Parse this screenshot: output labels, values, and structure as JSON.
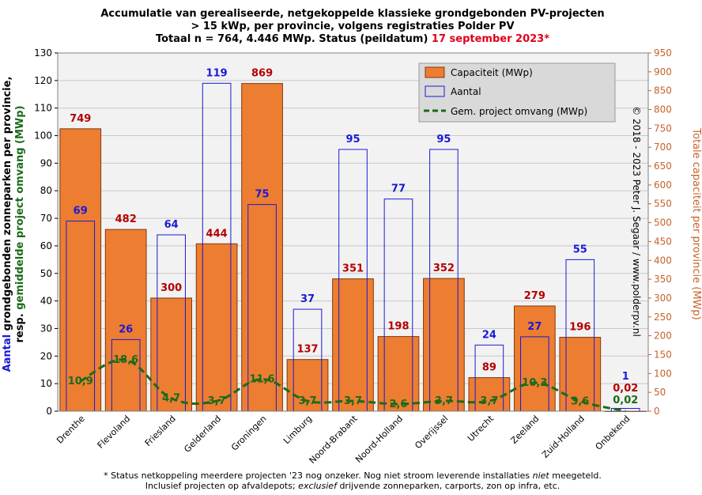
{
  "title": {
    "line1": "Accumulatie van gerealiseerde, netgekoppelde klassieke grondgebonden  PV-projecten",
    "line2": "> 15 kWp, per provincie, volgens registraties Polder PV",
    "line3_black": "Totaal n = 764, 4.446 MWp. Status (peildatum) ",
    "line3_red": "17 september 2023*"
  },
  "copyright": "© 2018 - 2023 Peter J. Segaar / www.polderpv.nl",
  "footnote": {
    "line1_a": "* Status netkoppeling meerdere projecten '23 nog onzeker. Nog niet stroom leverende installaties ",
    "line1_b": "niet",
    "line1_c": " meegeteld.",
    "line2_a": "Inclusief projecten op afvaldepots; ",
    "line2_b": "exclusief",
    "line2_c": " drijvende zonneparken, carports, zon op infra, etc."
  },
  "colors": {
    "capacity_fill": "#ed7d31",
    "capacity_stroke": "#7f3a10",
    "count_stroke": "#1a1ad6",
    "avg_line": "#1a6b1a",
    "right_axis": "#c7622a",
    "plot_bg": "#f2f2f2",
    "legend_bg": "#d9d9d9"
  },
  "chart_data": {
    "type": "bar",
    "categories": [
      "Drenthe",
      "Flevoland",
      "Friesland",
      "Gelderland",
      "Groningen",
      "Limburg",
      "Noord-Brabant",
      "Noord-Holland",
      "Overijssel",
      "Utrecht",
      "Zeeland",
      "Zuid-Holland",
      "Onbekend"
    ],
    "series": [
      {
        "name": "Capaciteit (MWp)",
        "axis": "right",
        "values": [
          749,
          482,
          300,
          444,
          869,
          137,
          351,
          198,
          352,
          89,
          279,
          196,
          0.02
        ],
        "labels": [
          "749",
          "482",
          "300",
          "444",
          "869",
          "137",
          "351",
          "198",
          "352",
          "89",
          "279",
          "196",
          "0,02"
        ]
      },
      {
        "name": "Aantal",
        "axis": "left",
        "values": [
          69,
          26,
          64,
          119,
          75,
          37,
          95,
          77,
          95,
          24,
          27,
          55,
          1
        ],
        "labels": [
          "69",
          "26",
          "64",
          "119",
          "75",
          "37",
          "95",
          "77",
          "95",
          "24",
          "27",
          "55",
          "1"
        ]
      },
      {
        "name": "Gem. project omvang (MWp)",
        "axis": "left",
        "values": [
          10.9,
          18.6,
          4.7,
          3.7,
          11.6,
          3.7,
          3.7,
          2.6,
          3.7,
          3.7,
          10.3,
          3.6,
          0.02
        ],
        "labels": [
          "10,9",
          "18,6",
          "4,7",
          "3,7",
          "11,6",
          "3,7",
          "3,7",
          "2,6",
          "3,7",
          "3,7",
          "10,3",
          "3,6",
          "0,02"
        ]
      }
    ],
    "ylabel_left": {
      "part1_blue": "Aantal",
      "part1_black": " grondgebonden  zonneparken  per provincie,",
      "part2_black": "resp. ",
      "part2_green": "gemiddelde project omvang (MWp)"
    },
    "ylabel_right": "Totale capaciteit per provincie (MWp)",
    "ylim_left": [
      0,
      130
    ],
    "ylim_right": [
      0,
      950
    ],
    "yticks_left": [
      "0",
      "10",
      "20",
      "30",
      "40",
      "50",
      "60",
      "70",
      "80",
      "90",
      "100",
      "110",
      "120",
      "130"
    ],
    "yticks_right": [
      "0",
      "50",
      "100",
      "150",
      "200",
      "250",
      "300",
      "350",
      "400",
      "450",
      "500",
      "550",
      "600",
      "650",
      "700",
      "750",
      "800",
      "850",
      "900",
      "950"
    ],
    "grid": true,
    "legend_position": "top-right"
  }
}
